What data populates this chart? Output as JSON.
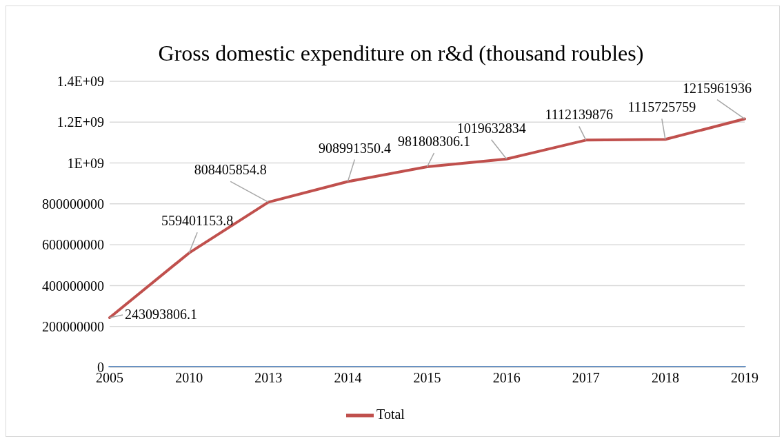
{
  "chart_data": {
    "type": "line",
    "title": "Gross domestic expenditure on r&d (thousand roubles)",
    "categories": [
      "2005",
      "2010",
      "2013",
      "2014",
      "2015",
      "2016",
      "2017",
      "2018",
      "2019"
    ],
    "series": [
      {
        "name": "Total",
        "color": "#c0504d",
        "values": [
          243093806.1,
          559401153.8,
          808405854.8,
          908991350.4,
          981808306.1,
          1019632834,
          1112139876,
          1115725759,
          1215961936
        ],
        "value_labels": [
          "243093806.1",
          "559401153.8",
          "808405854.8",
          "908991350.4",
          "981808306.1",
          "1019632834",
          "1112139876",
          "1115725759",
          "1215961936"
        ]
      },
      {
        "color": "#4f81bd",
        "values": [
          0,
          0,
          0,
          0,
          0,
          0,
          0,
          0,
          0
        ]
      }
    ],
    "ylim": [
      0,
      1400000000
    ],
    "yticks": [
      0,
      200000000,
      400000000,
      600000000,
      800000000,
      {
        "value": 1000000000,
        "label": "1E+09"
      },
      {
        "value": 1200000000,
        "label": "1.2E+09"
      },
      {
        "value": 1400000000,
        "label": "1.4E+09"
      }
    ],
    "grid": "y",
    "legend": "bottom",
    "marker": "none",
    "line_style": "solid"
  }
}
